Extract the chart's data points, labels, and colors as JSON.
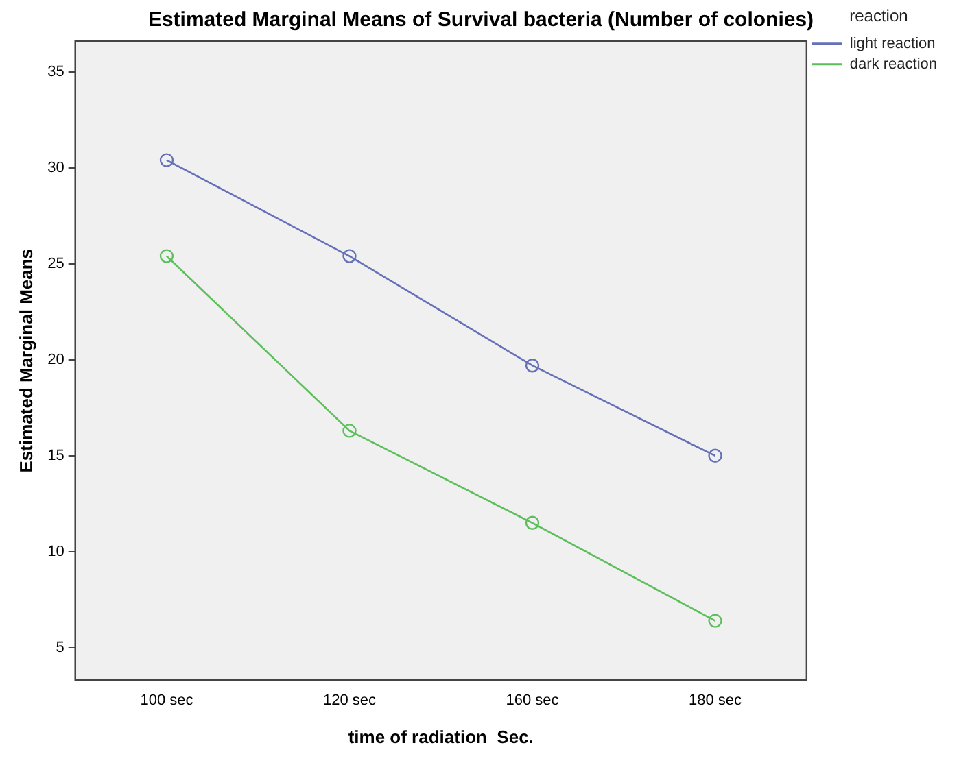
{
  "chart_data": {
    "type": "line",
    "title": "Estimated Marginal Means of Survival bacteria (Number of colonies)",
    "xlabel": "time of radiation  Sec.",
    "ylabel": "Estimated Marginal Means",
    "legend_title": "reaction",
    "categories": [
      "100 sec",
      "120 sec",
      "160 sec",
      "180 sec"
    ],
    "series": [
      {
        "name": "light reaction",
        "color": "#6470b8",
        "values": [
          30.4,
          25.4,
          19.7,
          15.0
        ]
      },
      {
        "name": "dark reaction",
        "color": "#5cbf5c",
        "values": [
          25.4,
          16.3,
          11.5,
          6.4
        ]
      }
    ],
    "ylim": [
      3.3,
      36.6
    ],
    "yticks": [
      5,
      10,
      15,
      20,
      25,
      30,
      35
    ],
    "grid": false,
    "legend": "top right",
    "marker": "circle",
    "line_style": "solid"
  }
}
